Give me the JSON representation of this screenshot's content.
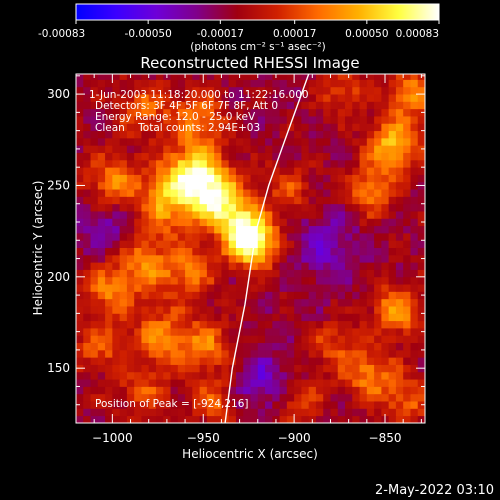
{
  "chart_data": {
    "type": "heatmap",
    "title": "Reconstructed RHESSI Image",
    "xlabel": "Heliocentric X (arcsec)",
    "ylabel": "Heliocentric Y (arcsec)",
    "xlim": [
      -1020,
      -828
    ],
    "ylim": [
      120,
      311
    ],
    "x_ticks": [
      -1000,
      -950,
      -900,
      -850
    ],
    "y_ticks": [
      150,
      200,
      250,
      300
    ],
    "colorbar": {
      "min": -0.00083,
      "max": 0.00083,
      "ticks": [
        -0.00083,
        -0.0005,
        -0.00017,
        0.00017,
        0.0005,
        0.00083
      ],
      "tick_labels": [
        "-0.00083",
        "-0.00050",
        "-0.00017",
        "0.00017",
        "0.00050",
        "0.00083"
      ],
      "unit_label": "(photons cm⁻² s⁻¹ asec⁻²)",
      "colors": [
        "#0000ff",
        "#3b00ff",
        "#6e00d8",
        "#80008a",
        "#a00010",
        "#d02000",
        "#ff6a00",
        "#ffb000",
        "#ffff40",
        "#ffffff"
      ]
    },
    "info_lines": [
      "1-Jun-2003 11:18:20.000 to 11:22:16.000",
      "Detectors: 3F 4F 5F 6F 7F 8F, Att 0",
      "Energy Range: 12.0 - 25.0 keV",
      "Clean    Total counts: 2.94E+03"
    ],
    "peak_label": "Position of Peak = [-924,216]",
    "peak": [
      -924,
      216
    ],
    "limb": [
      [
        -938,
        120
      ],
      [
        -934,
        150
      ],
      [
        -927,
        185
      ],
      [
        -924,
        205
      ],
      [
        -921,
        225
      ],
      [
        -914,
        250
      ],
      [
        -905,
        275
      ],
      [
        -892,
        311
      ]
    ],
    "hotspots": [
      {
        "x": -958,
        "y": 255,
        "amp": 0.00075,
        "w": 11
      },
      {
        "x": -945,
        "y": 242,
        "amp": 0.0007,
        "w": 10
      },
      {
        "x": -924,
        "y": 216,
        "amp": 0.00083,
        "w": 9
      },
      {
        "x": -932,
        "y": 227,
        "amp": 0.0006,
        "w": 10
      },
      {
        "x": -972,
        "y": 238,
        "amp": 0.0005,
        "w": 12
      },
      {
        "x": -985,
        "y": 205,
        "amp": 0.00045,
        "w": 11
      },
      {
        "x": -960,
        "y": 200,
        "amp": 0.0004,
        "w": 10
      },
      {
        "x": -1002,
        "y": 250,
        "amp": 0.00045,
        "w": 10
      },
      {
        "x": -1005,
        "y": 190,
        "amp": 0.0004,
        "w": 10
      },
      {
        "x": -1010,
        "y": 160,
        "amp": 0.00035,
        "w": 9
      },
      {
        "x": -975,
        "y": 165,
        "amp": 0.00045,
        "w": 11
      },
      {
        "x": -950,
        "y": 160,
        "amp": 0.0004,
        "w": 10
      },
      {
        "x": -985,
        "y": 135,
        "amp": 0.0003,
        "w": 10
      },
      {
        "x": -945,
        "y": 130,
        "amp": 0.00035,
        "w": 9
      },
      {
        "x": -955,
        "y": 285,
        "amp": 0.00045,
        "w": 10
      },
      {
        "x": -985,
        "y": 290,
        "amp": 0.00035,
        "w": 10
      },
      {
        "x": -848,
        "y": 270,
        "amp": 0.0006,
        "w": 10
      },
      {
        "x": -860,
        "y": 245,
        "amp": 0.00045,
        "w": 9
      },
      {
        "x": -838,
        "y": 298,
        "amp": 0.0005,
        "w": 9
      },
      {
        "x": -845,
        "y": 180,
        "amp": 0.0005,
        "w": 10
      },
      {
        "x": -860,
        "y": 145,
        "amp": 0.00045,
        "w": 10
      },
      {
        "x": -840,
        "y": 130,
        "amp": 0.00035,
        "w": 9
      },
      {
        "x": -880,
        "y": 160,
        "amp": 0.0003,
        "w": 9
      },
      {
        "x": -900,
        "y": 130,
        "amp": 0.0003,
        "w": 9
      },
      {
        "x": -875,
        "y": 300,
        "amp": 0.0003,
        "w": 9
      },
      {
        "x": -905,
        "y": 245,
        "amp": 0.0003,
        "w": 9
      },
      {
        "x": -920,
        "y": 140,
        "amp": -0.0003,
        "w": 12
      },
      {
        "x": -885,
        "y": 215,
        "amp": -0.00025,
        "w": 14
      },
      {
        "x": -1005,
        "y": 225,
        "amp": -0.00025,
        "w": 12
      }
    ]
  },
  "footer_date": "2-May-2022 03:10"
}
